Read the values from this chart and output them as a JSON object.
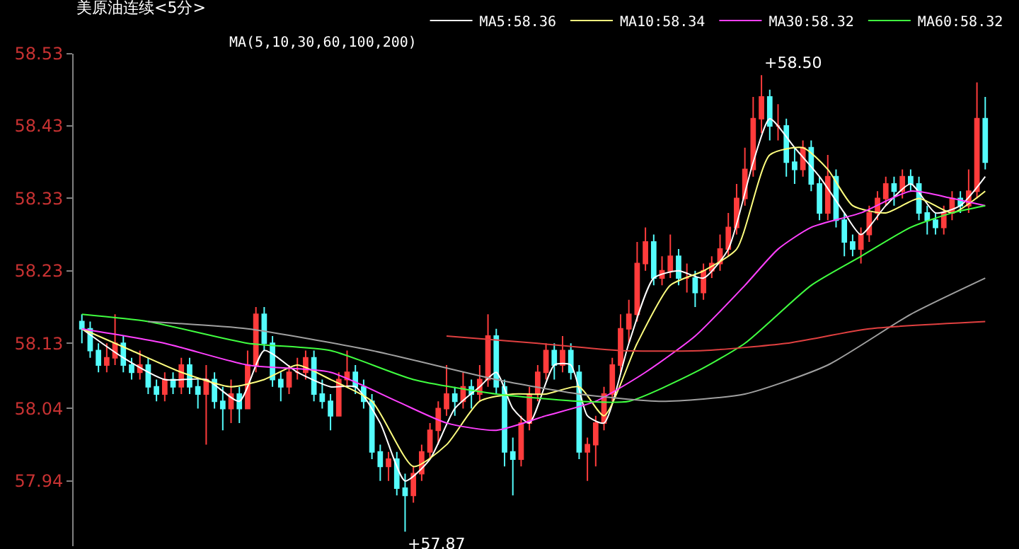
{
  "chart_data": {
    "type": "candlestick",
    "title": "美原油连续<5分>",
    "annotations": [
      "MA(5,10,30,60,100,200)",
      "+58.50",
      "+57.87"
    ],
    "categories": [
      null,
      null,
      null,
      null,
      null,
      null,
      null,
      null,
      null,
      null,
      null,
      null,
      null,
      null,
      null,
      null,
      null,
      null,
      null,
      null,
      null,
      null,
      null,
      null,
      null,
      null,
      null,
      null,
      null,
      null,
      null,
      null,
      null,
      null,
      null,
      null,
      null,
      null,
      null,
      null,
      null,
      null,
      null,
      null,
      null,
      null,
      null,
      null,
      null,
      null,
      null,
      null,
      null,
      null,
      null,
      null,
      null,
      null,
      null,
      null,
      null,
      null,
      null,
      null,
      null,
      null,
      null,
      null,
      null,
      null,
      null,
      null,
      null,
      null,
      null,
      null,
      null,
      null,
      null,
      null,
      null,
      null,
      null,
      null,
      null,
      null,
      null,
      null,
      null,
      null,
      null,
      null,
      null,
      null,
      null,
      null,
      null,
      null,
      null,
      null,
      null,
      null,
      null,
      null,
      null,
      null,
      null,
      null,
      null,
      null
    ],
    "ylim": [
      57.85,
      58.53
    ],
    "yticks": [
      58.53,
      58.43,
      58.33,
      58.23,
      58.13,
      58.04,
      57.94
    ],
    "grid": false,
    "legend": "top",
    "tick_labels": "y",
    "series": [
      {
        "ohlc": [
          [
            58.16,
            58.17,
            58.13,
            58.15
          ],
          [
            58.15,
            58.16,
            58.11,
            58.12
          ],
          [
            58.12,
            58.13,
            58.09,
            58.1
          ],
          [
            58.1,
            58.13,
            58.09,
            58.11
          ],
          [
            58.11,
            58.17,
            58.1,
            58.13
          ],
          [
            58.13,
            58.14,
            58.09,
            58.1
          ],
          [
            58.1,
            58.11,
            58.08,
            58.09
          ],
          [
            58.09,
            58.12,
            58.08,
            58.1
          ],
          [
            58.1,
            58.11,
            58.06,
            58.07
          ],
          [
            58.07,
            58.08,
            58.05,
            58.06
          ],
          [
            58.06,
            58.09,
            58.05,
            58.08
          ],
          [
            58.08,
            58.09,
            58.06,
            58.07
          ],
          [
            58.07,
            58.11,
            58.06,
            58.1
          ],
          [
            58.1,
            58.11,
            58.06,
            58.07
          ],
          [
            58.07,
            58.08,
            58.04,
            58.06
          ],
          [
            58.06,
            58.1,
            57.99,
            58.08
          ],
          [
            58.08,
            58.09,
            58.04,
            58.05
          ],
          [
            58.05,
            58.07,
            58.01,
            58.04
          ],
          [
            58.04,
            58.08,
            58.02,
            58.06
          ],
          [
            58.06,
            58.07,
            58.02,
            58.04
          ],
          [
            58.04,
            58.12,
            58.04,
            58.1
          ],
          [
            58.1,
            58.18,
            58.09,
            58.17
          ],
          [
            58.17,
            58.18,
            58.12,
            58.13
          ],
          [
            58.13,
            58.14,
            58.07,
            58.08
          ],
          [
            58.08,
            58.09,
            58.05,
            58.07
          ],
          [
            58.07,
            58.1,
            58.06,
            58.09
          ],
          [
            58.09,
            58.11,
            58.08,
            58.09
          ],
          [
            58.09,
            58.12,
            58.08,
            58.11
          ],
          [
            58.11,
            58.12,
            58.05,
            58.06
          ],
          [
            58.06,
            58.08,
            58.04,
            58.05
          ],
          [
            58.05,
            58.06,
            58.01,
            58.03
          ],
          [
            58.03,
            58.09,
            58.03,
            58.08
          ],
          [
            58.08,
            58.12,
            58.07,
            58.09
          ],
          [
            58.09,
            58.1,
            58.06,
            58.07
          ],
          [
            58.07,
            58.08,
            58.04,
            58.05
          ],
          [
            58.05,
            58.06,
            57.97,
            57.98
          ],
          [
            57.98,
            57.99,
            57.94,
            57.96
          ],
          [
            57.96,
            57.98,
            57.94,
            57.97
          ],
          [
            57.97,
            57.98,
            57.92,
            57.93
          ],
          [
            57.93,
            57.95,
            57.87,
            57.92
          ],
          [
            57.92,
            57.96,
            57.91,
            57.95
          ],
          [
            57.95,
            57.99,
            57.94,
            57.98
          ],
          [
            57.98,
            58.02,
            57.97,
            58.01
          ],
          [
            58.01,
            58.05,
            57.99,
            58.04
          ],
          [
            58.04,
            58.1,
            58.03,
            58.06
          ],
          [
            58.06,
            58.07,
            58.03,
            58.05
          ],
          [
            58.05,
            58.09,
            58.04,
            58.07
          ],
          [
            58.07,
            58.08,
            58.04,
            58.06
          ],
          [
            58.06,
            58.1,
            58.05,
            58.08
          ],
          [
            58.08,
            58.17,
            58.07,
            58.14
          ],
          [
            58.14,
            58.15,
            58.06,
            58.07
          ],
          [
            58.07,
            58.08,
            57.96,
            57.98
          ],
          [
            57.98,
            58.0,
            57.92,
            57.97
          ],
          [
            57.97,
            58.03,
            57.96,
            58.02
          ],
          [
            58.02,
            58.07,
            58.01,
            58.06
          ],
          [
            58.06,
            58.1,
            58.05,
            58.09
          ],
          [
            58.09,
            58.13,
            58.08,
            58.12
          ],
          [
            58.12,
            58.13,
            58.08,
            58.1
          ],
          [
            58.1,
            58.14,
            58.09,
            58.12
          ],
          [
            58.12,
            58.13,
            58.08,
            58.09
          ],
          [
            58.09,
            58.1,
            57.97,
            57.98
          ],
          [
            57.98,
            58.0,
            57.94,
            57.99
          ],
          [
            57.99,
            58.03,
            57.96,
            58.02
          ],
          [
            58.02,
            58.07,
            58.01,
            58.06
          ],
          [
            58.06,
            58.11,
            58.05,
            58.1
          ],
          [
            58.1,
            58.17,
            58.09,
            58.15
          ],
          [
            58.15,
            58.19,
            58.13,
            58.17
          ],
          [
            58.17,
            58.27,
            58.16,
            58.24
          ],
          [
            58.24,
            58.29,
            58.23,
            58.27
          ],
          [
            58.27,
            58.28,
            58.21,
            58.22
          ],
          [
            58.22,
            58.25,
            58.21,
            58.23
          ],
          [
            58.23,
            58.28,
            58.22,
            58.25
          ],
          [
            58.25,
            58.26,
            58.21,
            58.22
          ],
          [
            58.22,
            58.24,
            58.2,
            58.22
          ],
          [
            58.22,
            58.23,
            58.18,
            58.2
          ],
          [
            58.2,
            58.24,
            58.19,
            58.23
          ],
          [
            58.23,
            58.25,
            58.22,
            58.24
          ],
          [
            58.24,
            58.28,
            58.23,
            58.26
          ],
          [
            58.26,
            58.31,
            58.25,
            58.29
          ],
          [
            58.29,
            58.35,
            58.28,
            58.33
          ],
          [
            58.33,
            58.4,
            58.32,
            58.37
          ],
          [
            58.37,
            58.47,
            58.36,
            58.44
          ],
          [
            58.44,
            58.5,
            58.42,
            58.47
          ],
          [
            58.47,
            58.48,
            58.41,
            58.43
          ],
          [
            58.43,
            58.46,
            58.41,
            58.43
          ],
          [
            58.43,
            58.44,
            58.36,
            58.38
          ],
          [
            58.38,
            58.4,
            58.35,
            58.37
          ],
          [
            58.37,
            58.41,
            58.36,
            58.4
          ],
          [
            58.4,
            58.41,
            58.34,
            58.35
          ],
          [
            58.35,
            58.36,
            58.3,
            58.31
          ],
          [
            58.31,
            58.39,
            58.3,
            58.36
          ],
          [
            58.36,
            58.37,
            58.29,
            58.3
          ],
          [
            58.3,
            58.31,
            58.25,
            58.27
          ],
          [
            58.27,
            58.28,
            58.25,
            58.26
          ],
          [
            58.26,
            58.29,
            58.24,
            58.28
          ],
          [
            58.28,
            58.32,
            58.27,
            58.31
          ],
          [
            58.31,
            58.34,
            58.3,
            58.33
          ],
          [
            58.33,
            58.36,
            58.32,
            58.35
          ],
          [
            58.35,
            58.36,
            58.32,
            58.34
          ],
          [
            58.34,
            58.37,
            58.33,
            58.36
          ],
          [
            58.36,
            58.37,
            58.34,
            58.35
          ],
          [
            58.35,
            58.36,
            58.3,
            58.31
          ],
          [
            58.31,
            58.32,
            58.28,
            58.3
          ],
          [
            58.3,
            58.31,
            58.28,
            58.29
          ],
          [
            58.29,
            58.32,
            58.28,
            58.31
          ],
          [
            58.31,
            58.34,
            58.3,
            58.33
          ],
          [
            58.33,
            58.34,
            58.31,
            58.32
          ],
          [
            58.32,
            58.37,
            58.31,
            58.34
          ],
          [
            58.34,
            58.49,
            58.33,
            58.44
          ],
          [
            58.44,
            58.47,
            58.37,
            58.38
          ]
        ],
        "colors": [
          "#54fcfc",
          "#54fcfc",
          "#54fcfc",
          "#ff3c3c",
          "#ff3c3c",
          "#54fcfc",
          "#54fcfc",
          "#ff3c3c",
          "#54fcfc",
          "#54fcfc",
          "#ff3c3c",
          "#54fcfc",
          "#ff3c3c",
          "#54fcfc",
          "#54fcfc",
          "#ff3c3c",
          "#54fcfc",
          "#54fcfc",
          "#ff3c3c",
          "#54fcfc",
          "#ff3c3c",
          "#ff3c3c",
          "#54fcfc",
          "#54fcfc",
          "#54fcfc",
          "#ff3c3c",
          "#ff3c3c",
          "#ff3c3c",
          "#54fcfc",
          "#54fcfc",
          "#54fcfc",
          "#ff3c3c",
          "#ff3c3c",
          "#54fcfc",
          "#54fcfc",
          "#54fcfc",
          "#54fcfc",
          "#ff3c3c",
          "#54fcfc",
          "#54fcfc",
          "#ff3c3c",
          "#ff3c3c",
          "#ff3c3c",
          "#ff3c3c",
          "#ff3c3c",
          "#54fcfc",
          "#ff3c3c",
          "#54fcfc",
          "#ff3c3c",
          "#ff3c3c",
          "#54fcfc",
          "#54fcfc",
          "#54fcfc",
          "#ff3c3c",
          "#ff3c3c",
          "#ff3c3c",
          "#ff3c3c",
          "#54fcfc",
          "#ff3c3c",
          "#54fcfc",
          "#54fcfc",
          "#ff3c3c",
          "#ff3c3c",
          "#ff3c3c",
          "#ff3c3c",
          "#ff3c3c",
          "#ff3c3c",
          "#ff3c3c",
          "#ff3c3c",
          "#54fcfc",
          "#ff3c3c",
          "#ff3c3c",
          "#54fcfc",
          "#ff3c3c",
          "#54fcfc",
          "#ff3c3c",
          "#ff3c3c",
          "#ff3c3c",
          "#ff3c3c",
          "#ff3c3c",
          "#ff3c3c",
          "#ff3c3c",
          "#ff3c3c",
          "#54fcfc",
          "#ff3c3c",
          "#54fcfc",
          "#54fcfc",
          "#ff3c3c",
          "#54fcfc",
          "#54fcfc",
          "#ff3c3c",
          "#54fcfc",
          "#54fcfc",
          "#54fcfc",
          "#ff3c3c",
          "#ff3c3c",
          "#ff3c3c",
          "#ff3c3c",
          "#54fcfc",
          "#ff3c3c",
          "#54fcfc",
          "#54fcfc",
          "#54fcfc",
          "#54fcfc",
          "#ff3c3c",
          "#ff3c3c",
          "#54fcfc",
          "#ff3c3c",
          "#ff3c3c",
          "#54fcfc"
        ]
      },
      {
        "type": "line",
        "name": "MA5:58.36",
        "color": "#ffffff",
        "values": [
          58.15,
          null,
          null,
          null,
          null,
          58.11,
          null,
          null,
          null,
          null,
          58.08,
          null,
          null,
          null,
          null,
          58.08,
          null,
          null,
          null,
          58.05,
          null,
          null,
          58.12,
          null,
          null,
          null,
          58.09,
          null,
          null,
          null,
          58.07,
          null,
          null,
          58.07,
          null,
          null,
          58.02,
          null,
          null,
          57.94,
          null,
          null,
          57.97,
          null,
          null,
          58.04,
          null,
          null,
          58.07,
          null,
          58.09,
          null,
          58.04,
          null,
          58.02,
          null,
          null,
          58.1,
          null,
          58.1,
          null,
          58.03,
          null,
          58.02,
          null,
          null,
          58.13,
          null,
          null,
          58.22,
          null,
          null,
          58.23,
          null,
          null,
          58.22,
          null,
          null,
          58.26,
          null,
          null,
          58.38,
          null,
          58.44,
          null,
          null,
          58.4,
          null,
          null,
          58.36,
          null,
          null,
          58.31,
          null,
          58.28,
          null,
          null,
          58.32,
          null,
          null,
          58.35,
          null,
          null,
          58.31,
          null,
          null,
          58.32,
          null,
          null,
          58.36
        ]
      },
      {
        "type": "line",
        "name": "MA10:58.34",
        "color": "#ffff7f",
        "values": [
          58.15,
          null,
          null,
          null,
          null,
          null,
          58.12,
          null,
          null,
          null,
          null,
          null,
          58.09,
          null,
          null,
          null,
          null,
          null,
          58.07,
          null,
          null,
          null,
          58.08,
          null,
          null,
          null,
          58.1,
          null,
          null,
          null,
          58.08,
          null,
          null,
          null,
          null,
          58.05,
          null,
          null,
          null,
          null,
          57.96,
          null,
          null,
          null,
          57.99,
          null,
          null,
          null,
          58.05,
          null,
          null,
          null,
          58.06,
          null,
          null,
          null,
          58.06,
          null,
          null,
          null,
          58.07,
          null,
          null,
          58.03,
          null,
          null,
          null,
          58.13,
          null,
          null,
          null,
          58.21,
          null,
          null,
          null,
          58.23,
          null,
          null,
          null,
          58.26,
          null,
          null,
          null,
          58.39,
          null,
          null,
          null,
          58.4,
          null,
          null,
          58.37,
          null,
          null,
          58.32,
          null,
          null,
          null,
          58.31,
          null,
          null,
          null,
          58.33,
          null,
          null,
          null,
          58.31,
          null,
          null,
          null,
          58.34
        ]
      },
      {
        "type": "line",
        "name": "MA30:58.32",
        "color": "#ff40ff",
        "values": [
          58.15,
          null,
          null,
          null,
          null,
          null,
          null,
          null,
          null,
          null,
          58.13,
          null,
          null,
          null,
          null,
          null,
          null,
          null,
          null,
          null,
          58.1,
          null,
          null,
          null,
          null,
          null,
          null,
          null,
          null,
          null,
          58.09,
          null,
          null,
          null,
          null,
          null,
          null,
          null,
          58.05,
          null,
          null,
          null,
          null,
          null,
          58.02,
          null,
          null,
          null,
          null,
          null,
          58.01,
          null,
          null,
          null,
          null,
          null,
          58.03,
          null,
          null,
          null,
          null,
          null,
          58.05,
          null,
          null,
          null,
          null,
          null,
          58.09,
          null,
          null,
          null,
          null,
          null,
          58.14,
          null,
          null,
          null,
          null,
          null,
          58.21,
          null,
          null,
          null,
          58.26,
          null,
          null,
          null,
          58.29,
          null,
          null,
          null,
          null,
          null,
          58.31,
          null,
          null,
          null,
          null,
          null,
          58.34,
          null,
          null,
          null,
          null,
          58.33,
          null,
          null,
          null,
          58.32
        ]
      },
      {
        "type": "line",
        "name": "MA60:58.32",
        "color": "#40ff40",
        "values": [
          58.17,
          null,
          null,
          null,
          null,
          null,
          null,
          null,
          58.16,
          null,
          null,
          null,
          null,
          null,
          null,
          null,
          null,
          null,
          null,
          null,
          58.13,
          null,
          null,
          null,
          null,
          null,
          null,
          null,
          null,
          null,
          58.12,
          null,
          null,
          null,
          null,
          null,
          null,
          null,
          null,
          null,
          58.08,
          null,
          null,
          null,
          null,
          null,
          null,
          null,
          null,
          null,
          58.06,
          null,
          null,
          null,
          null,
          null,
          null,
          null,
          null,
          null,
          58.05,
          null,
          null,
          null,
          null,
          null,
          58.05,
          null,
          null,
          null,
          null,
          null,
          null,
          null,
          58.09,
          null,
          null,
          null,
          null,
          null,
          58.13,
          null,
          null,
          null,
          null,
          null,
          null,
          null,
          58.21,
          null,
          null,
          null,
          null,
          null,
          58.25,
          null,
          null,
          null,
          null,
          null,
          58.29,
          null,
          null,
          null,
          null,
          58.31,
          null,
          null,
          null,
          58.32
        ]
      },
      {
        "type": "line",
        "color": "#a0a0a0",
        "values": [
          null,
          null,
          null,
          null,
          null,
          null,
          null,
          null,
          58.16,
          null,
          null,
          null,
          null,
          null,
          null,
          null,
          null,
          null,
          null,
          null,
          58.15,
          null,
          null,
          null,
          null,
          null,
          null,
          null,
          null,
          null,
          null,
          null,
          null,
          null,
          null,
          58.12,
          null,
          null,
          null,
          null,
          null,
          null,
          null,
          null,
          null,
          null,
          null,
          null,
          null,
          null,
          58.08,
          null,
          null,
          null,
          null,
          null,
          null,
          null,
          null,
          null,
          58.06,
          null,
          null,
          null,
          null,
          null,
          null,
          null,
          null,
          null,
          58.05,
          null,
          null,
          null,
          null,
          null,
          null,
          null,
          null,
          null,
          58.06,
          null,
          null,
          null,
          null,
          null,
          null,
          null,
          null,
          null,
          58.1,
          null,
          null,
          null,
          null,
          null,
          null,
          null,
          null,
          null,
          58.17,
          null,
          null,
          null,
          null,
          null,
          null,
          null,
          null,
          58.22
        ]
      },
      {
        "type": "line",
        "color": "#e04040",
        "values": [
          null,
          null,
          null,
          null,
          null,
          null,
          null,
          null,
          null,
          null,
          null,
          null,
          null,
          null,
          null,
          null,
          null,
          null,
          null,
          null,
          null,
          null,
          null,
          null,
          null,
          null,
          null,
          null,
          null,
          null,
          null,
          null,
          null,
          null,
          null,
          null,
          null,
          null,
          null,
          null,
          null,
          null,
          null,
          null,
          58.14,
          null,
          null,
          null,
          null,
          null,
          null,
          null,
          null,
          null,
          null,
          58.13,
          null,
          null,
          null,
          null,
          null,
          null,
          null,
          null,
          null,
          58.12,
          null,
          null,
          null,
          null,
          null,
          null,
          null,
          null,
          null,
          58.12,
          null,
          null,
          null,
          null,
          null,
          null,
          null,
          null,
          null,
          58.13,
          null,
          null,
          null,
          null,
          null,
          null,
          null,
          null,
          null,
          58.15,
          null,
          null,
          null,
          null,
          null,
          null,
          null,
          null,
          null,
          null,
          null,
          null,
          null,
          58.16
        ]
      }
    ]
  }
}
